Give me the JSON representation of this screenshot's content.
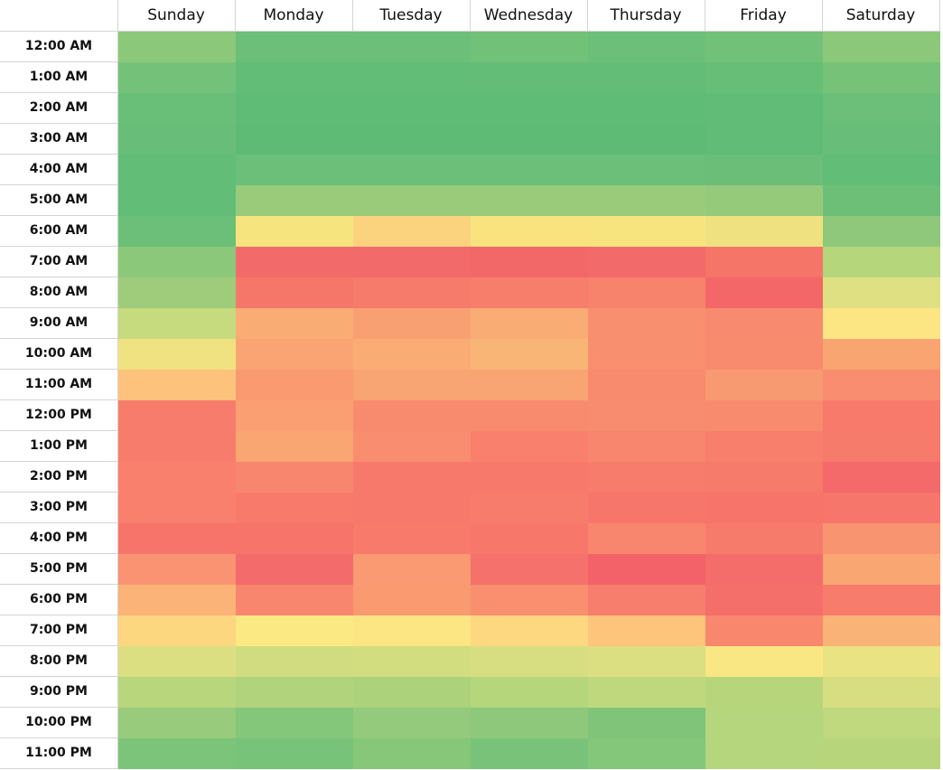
{
  "table": {
    "columns": [
      "Sunday",
      "Monday",
      "Tuesday",
      "Wednesday",
      "Thursday",
      "Friday",
      "Saturday"
    ],
    "rows": [
      {
        "label": "12:00 AM",
        "colors": [
          "#8cc87a",
          "#6bbf78",
          "#6cbf78",
          "#71c179",
          "#6cbf78",
          "#72c179",
          "#8cc87a"
        ]
      },
      {
        "label": "1:00 AM",
        "colors": [
          "#74c179",
          "#62bd77",
          "#62bd77",
          "#63bd77",
          "#64bd77",
          "#66be77",
          "#76c279"
        ]
      },
      {
        "label": "2:00 AM",
        "colors": [
          "#6abf78",
          "#5fbc77",
          "#5fbc77",
          "#5fbc77",
          "#5fbc77",
          "#61bc77",
          "#6cbf78"
        ]
      },
      {
        "label": "3:00 AM",
        "colors": [
          "#68be78",
          "#5ebb76",
          "#5ebb76",
          "#5ebb76",
          "#5ebb76",
          "#60bc77",
          "#68be78"
        ]
      },
      {
        "label": "4:00 AM",
        "colors": [
          "#62bd77",
          "#6bbf78",
          "#6bbf78",
          "#6bbf78",
          "#6bbf78",
          "#6abe78",
          "#62bd77"
        ]
      },
      {
        "label": "5:00 AM",
        "colors": [
          "#62bd77",
          "#9acb7b",
          "#9acb7b",
          "#9acb7b",
          "#9acb7b",
          "#96ca7b",
          "#6dbf78"
        ]
      },
      {
        "label": "6:00 AM",
        "colors": [
          "#6cbf78",
          "#f6e57f",
          "#fbd27e",
          "#f8e37f",
          "#f8e47f",
          "#efe180",
          "#8fc87a"
        ]
      },
      {
        "label": "7:00 AM",
        "colors": [
          "#8cc87a",
          "#f36a6a",
          "#f36a6a",
          "#f26768",
          "#f36a6a",
          "#f57569",
          "#b6d67c"
        ]
      },
      {
        "label": "8:00 AM",
        "colors": [
          "#9fcc7b",
          "#f57769",
          "#f77b6b",
          "#f87e6c",
          "#f8836d",
          "#f36768",
          "#dee082"
        ]
      },
      {
        "label": "9:00 AM",
        "colors": [
          "#c6da7e",
          "#f9ac74",
          "#f9a072",
          "#f9ac74",
          "#f88f6f",
          "#f88b6f",
          "#fbe683"
        ]
      },
      {
        "label": "10:00 AM",
        "colors": [
          "#f0e281",
          "#f9a472",
          "#f9ad75",
          "#f9b576",
          "#f88f6f",
          "#f88a6e",
          "#f9a572"
        ]
      },
      {
        "label": "11:00 AM",
        "colors": [
          "#fdc37c",
          "#f99a71",
          "#f9a473",
          "#f9a473",
          "#f88a6e",
          "#f89a71",
          "#f88e6f"
        ]
      },
      {
        "label": "12:00 PM",
        "colors": [
          "#f77c6c",
          "#f99f72",
          "#f88b6e",
          "#f88b6e",
          "#f88c6e",
          "#f88b6e",
          "#f77a6b"
        ]
      },
      {
        "label": "1:00 PM",
        "colors": [
          "#f77c6c",
          "#f9a673",
          "#f88d6f",
          "#f8806c",
          "#f8856d",
          "#f77f6c",
          "#f77b6b"
        ]
      },
      {
        "label": "2:00 PM",
        "colors": [
          "#f8806c",
          "#f8866e",
          "#f7796b",
          "#f7796b",
          "#f77c6c",
          "#f77b6b",
          "#f4696a"
        ]
      },
      {
        "label": "3:00 PM",
        "colors": [
          "#f8806c",
          "#f77a6b",
          "#f7796b",
          "#f77c6c",
          "#f7766b",
          "#f7746a",
          "#f7766b"
        ]
      },
      {
        "label": "4:00 PM",
        "colors": [
          "#f7746a",
          "#f7746a",
          "#f77a6b",
          "#f7786b",
          "#f8866e",
          "#f77b6b",
          "#f99471"
        ]
      },
      {
        "label": "5:00 PM",
        "colors": [
          "#f99372",
          "#f36b6a",
          "#f99a72",
          "#f5716b",
          "#f36268",
          "#f46d6a",
          "#f9a673"
        ]
      },
      {
        "label": "6:00 PM",
        "colors": [
          "#fbb377",
          "#f8856e",
          "#f99a71",
          "#f8906f",
          "#f77d6c",
          "#f46e6a",
          "#f77c6c"
        ]
      },
      {
        "label": "7:00 PM",
        "colors": [
          "#fdd680",
          "#fbe983",
          "#fce583",
          "#fdd880",
          "#fcc57b",
          "#f8876e",
          "#fab376"
        ]
      },
      {
        "label": "8:00 PM",
        "colors": [
          "#dbdf82",
          "#d0dc80",
          "#d2dd80",
          "#d6de81",
          "#dbdf82",
          "#f8e783",
          "#e9e383"
        ]
      },
      {
        "label": "9:00 PM",
        "colors": [
          "#b8d67c",
          "#b0d37c",
          "#acd27b",
          "#b6d67c",
          "#bfd87e",
          "#b7d67c",
          "#d6de81"
        ]
      },
      {
        "label": "10:00 PM",
        "colors": [
          "#98cb7b",
          "#84c67a",
          "#94ca7b",
          "#8ec87a",
          "#7fc479",
          "#b5d67c",
          "#c0d87e"
        ]
      },
      {
        "label": "11:00 PM",
        "colors": [
          "#7cc479",
          "#77c379",
          "#87c77a",
          "#78c379",
          "#84c67a",
          "#b5d67c",
          "#b7d67c"
        ]
      }
    ]
  }
}
